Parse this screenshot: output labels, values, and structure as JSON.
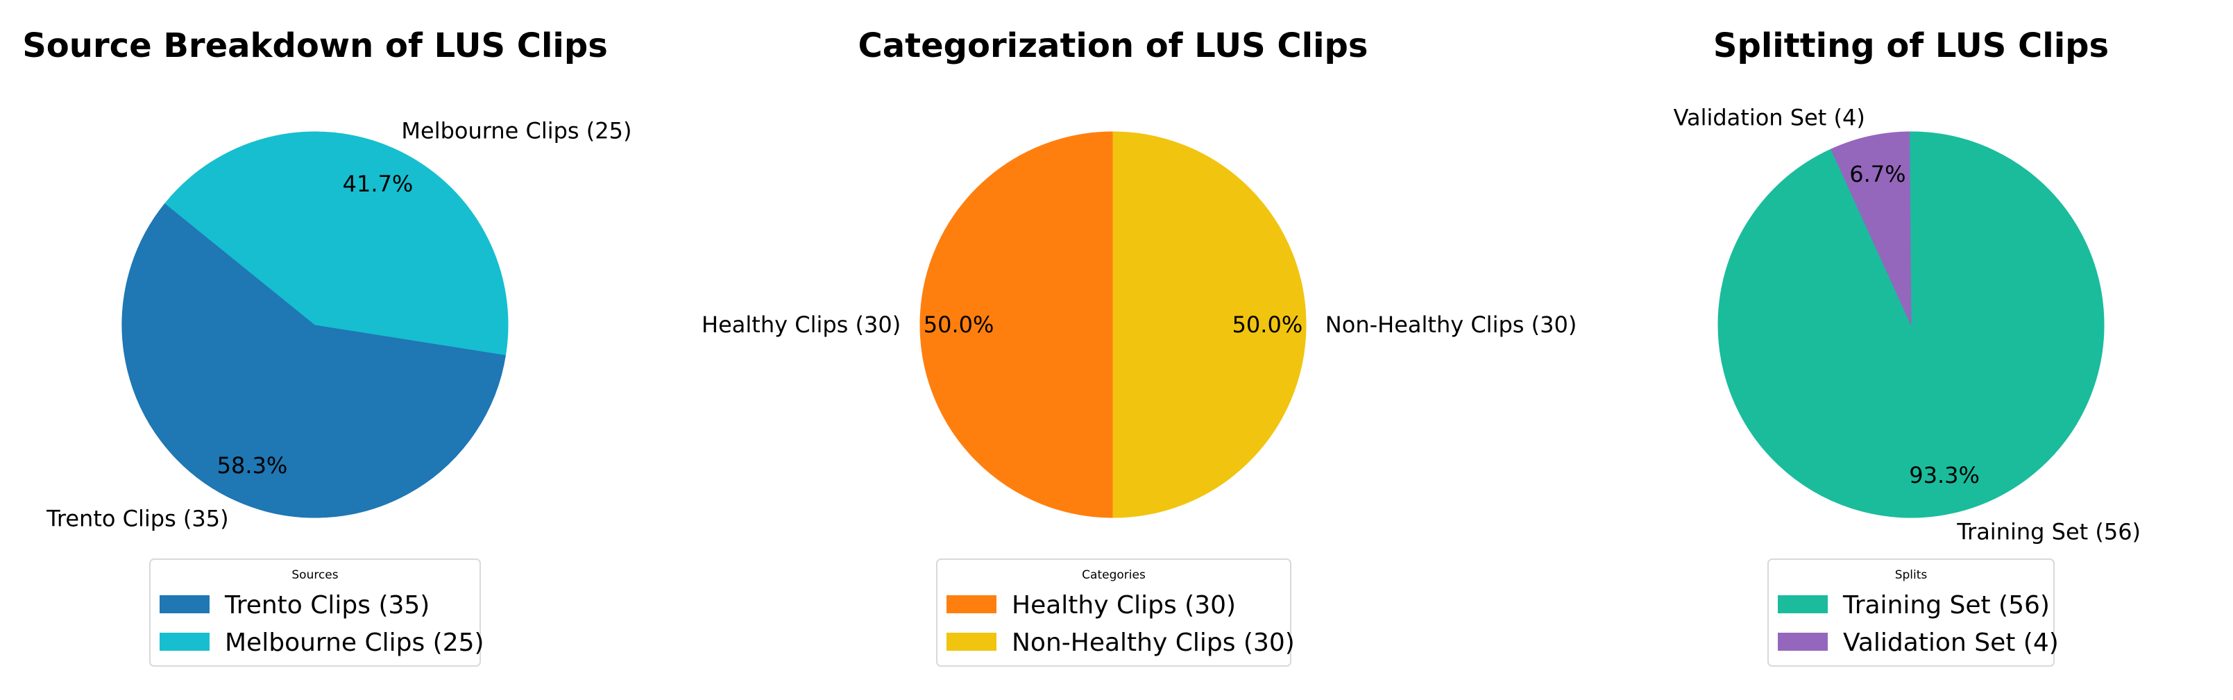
{
  "chart_data": [
    {
      "type": "pie",
      "title": "Source Breakdown of LUS Clips",
      "legend_title": "Sources",
      "legend_placement": "bottom",
      "slices": [
        {
          "label": "Trento Clips (35)",
          "value": 35,
          "pct": "58.3%",
          "color": "#1f77b4"
        },
        {
          "label": "Melbourne Clips (25)",
          "value": 25,
          "pct": "41.7%",
          "color": "#17becf"
        }
      ]
    },
    {
      "type": "pie",
      "title": "Categorization of LUS Clips",
      "legend_title": "Categories",
      "legend_placement": "bottom",
      "slices": [
        {
          "label": "Healthy Clips (30)",
          "value": 30,
          "pct": "50.0%",
          "color": "#ff7f0e"
        },
        {
          "label": "Non-Healthy Clips (30)",
          "value": 30,
          "pct": "50.0%",
          "color": "#f1c40f"
        }
      ]
    },
    {
      "type": "pie",
      "title": "Splitting of LUS Clips",
      "legend_title": "Splits",
      "legend_placement": "bottom",
      "slices": [
        {
          "label": "Training Set (56)",
          "value": 56,
          "pct": "93.3%",
          "color": "#1abc9c"
        },
        {
          "label": "Validation Set (4)",
          "value": 4,
          "pct": "6.7%",
          "color": "#9467bd"
        }
      ]
    }
  ]
}
